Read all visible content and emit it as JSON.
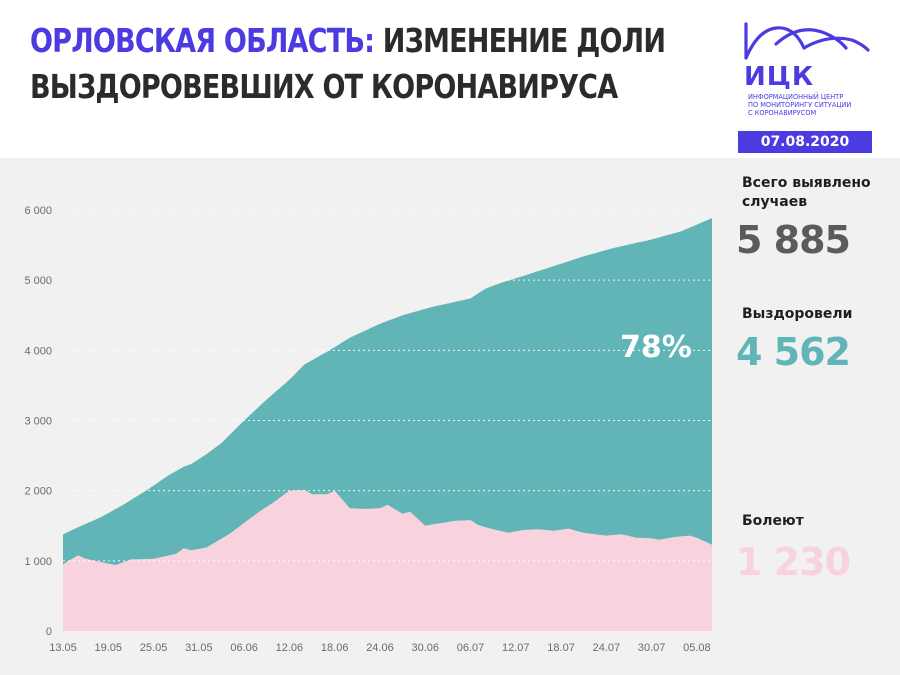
{
  "header": {
    "title_region": "Орловская область:",
    "title_rest_line1": "изменение доли",
    "title_line2": "выздоровевших от коронавируса"
  },
  "logo": {
    "word": "ИЦК",
    "subtitle": [
      "Информационный центр",
      "по мониторингу ситуации",
      "с коронавирусом"
    ]
  },
  "date_badge": "07.08.2020",
  "stats": {
    "total_label": [
      "Всего выявлено",
      "случаев"
    ],
    "total_value": "5 885",
    "recovered_label": "Выздоровели",
    "recovered_value": "4 562",
    "sick_label": "Болеют",
    "sick_value": "1 230",
    "recovered_share": "78%"
  },
  "colors": {
    "accent": "#4b3be0",
    "recovered": "#62b5b6",
    "sick": "#f8d3de",
    "total_value": "#5b5b5b",
    "recovered_value": "#62b5b6",
    "sick_value": "#f8d3de"
  },
  "chart_data": {
    "type": "area",
    "stacked": true,
    "grid": "horizontal dashed",
    "ylim": [
      0,
      6000
    ],
    "yticks": [
      0,
      1000,
      2000,
      3000,
      4000,
      5000,
      6000
    ],
    "ytick_labels": [
      "0",
      "1 000",
      "2 000",
      "3 000",
      "4 000",
      "5 000",
      "6 000"
    ],
    "xtick_labels": [
      "13.05",
      "19.05",
      "25.05",
      "31.05",
      "06.06",
      "12.06",
      "18.06",
      "24.06",
      "30.06",
      "06.07",
      "12.07",
      "18.07",
      "24.07",
      "30.07",
      "05.08"
    ],
    "x_start": "13.05",
    "x_end": "07.08",
    "series": [
      {
        "name": "Болеют",
        "color": "#f8d3de",
        "points": [
          [
            "13.05",
            950
          ],
          [
            "15.05",
            1080
          ],
          [
            "16.05",
            1030
          ],
          [
            "19.05",
            960
          ],
          [
            "20.05",
            940
          ],
          [
            "22.05",
            1020
          ],
          [
            "25.05",
            1030
          ],
          [
            "28.05",
            1100
          ],
          [
            "29.05",
            1180
          ],
          [
            "30.05",
            1150
          ],
          [
            "01.06",
            1190
          ],
          [
            "04.06",
            1380
          ],
          [
            "06.06",
            1540
          ],
          [
            "08.06",
            1700
          ],
          [
            "10.06",
            1840
          ],
          [
            "12.06",
            2000
          ],
          [
            "14.06",
            2010
          ],
          [
            "15.06",
            1950
          ],
          [
            "17.06",
            1950
          ],
          [
            "18.06",
            2000
          ],
          [
            "20.06",
            1750
          ],
          [
            "22.06",
            1740
          ],
          [
            "24.06",
            1750
          ],
          [
            "25.06",
            1800
          ],
          [
            "27.06",
            1670
          ],
          [
            "28.06",
            1700
          ],
          [
            "30.06",
            1500
          ],
          [
            "01.07",
            1520
          ],
          [
            "04.07",
            1570
          ],
          [
            "06.07",
            1580
          ],
          [
            "07.07",
            1510
          ],
          [
            "09.07",
            1450
          ],
          [
            "11.07",
            1400
          ],
          [
            "13.07",
            1440
          ],
          [
            "15.07",
            1450
          ],
          [
            "17.07",
            1430
          ],
          [
            "19.07",
            1460
          ],
          [
            "21.07",
            1400
          ],
          [
            "24.07",
            1360
          ],
          [
            "26.07",
            1380
          ],
          [
            "28.07",
            1330
          ],
          [
            "30.07",
            1320
          ],
          [
            "31.07",
            1300
          ],
          [
            "02.08",
            1340
          ],
          [
            "04.08",
            1360
          ],
          [
            "05.08",
            1330
          ],
          [
            "07.08",
            1230
          ]
        ]
      },
      {
        "name": "Выздоровели",
        "color": "#62b5b6",
        "total_points": [
          [
            "13.05",
            1380
          ],
          [
            "15.05",
            1480
          ],
          [
            "18.05",
            1620
          ],
          [
            "21.05",
            1800
          ],
          [
            "24.05",
            2000
          ],
          [
            "27.05",
            2220
          ],
          [
            "29.05",
            2340
          ],
          [
            "30.05",
            2380
          ],
          [
            "01.06",
            2520
          ],
          [
            "03.06",
            2680
          ],
          [
            "06.06",
            3000
          ],
          [
            "09.06",
            3300
          ],
          [
            "12.06",
            3580
          ],
          [
            "14.06",
            3800
          ],
          [
            "17.06",
            3980
          ],
          [
            "20.06",
            4180
          ],
          [
            "24.06",
            4380
          ],
          [
            "27.06",
            4500
          ],
          [
            "01.07",
            4620
          ],
          [
            "06.07",
            4740
          ],
          [
            "08.07",
            4880
          ],
          [
            "10.07",
            4960
          ],
          [
            "13.07",
            5060
          ],
          [
            "17.07",
            5200
          ],
          [
            "21.07",
            5340
          ],
          [
            "25.07",
            5460
          ],
          [
            "30.07",
            5580
          ],
          [
            "03.08",
            5700
          ],
          [
            "07.08",
            5885
          ]
        ]
      }
    ]
  }
}
